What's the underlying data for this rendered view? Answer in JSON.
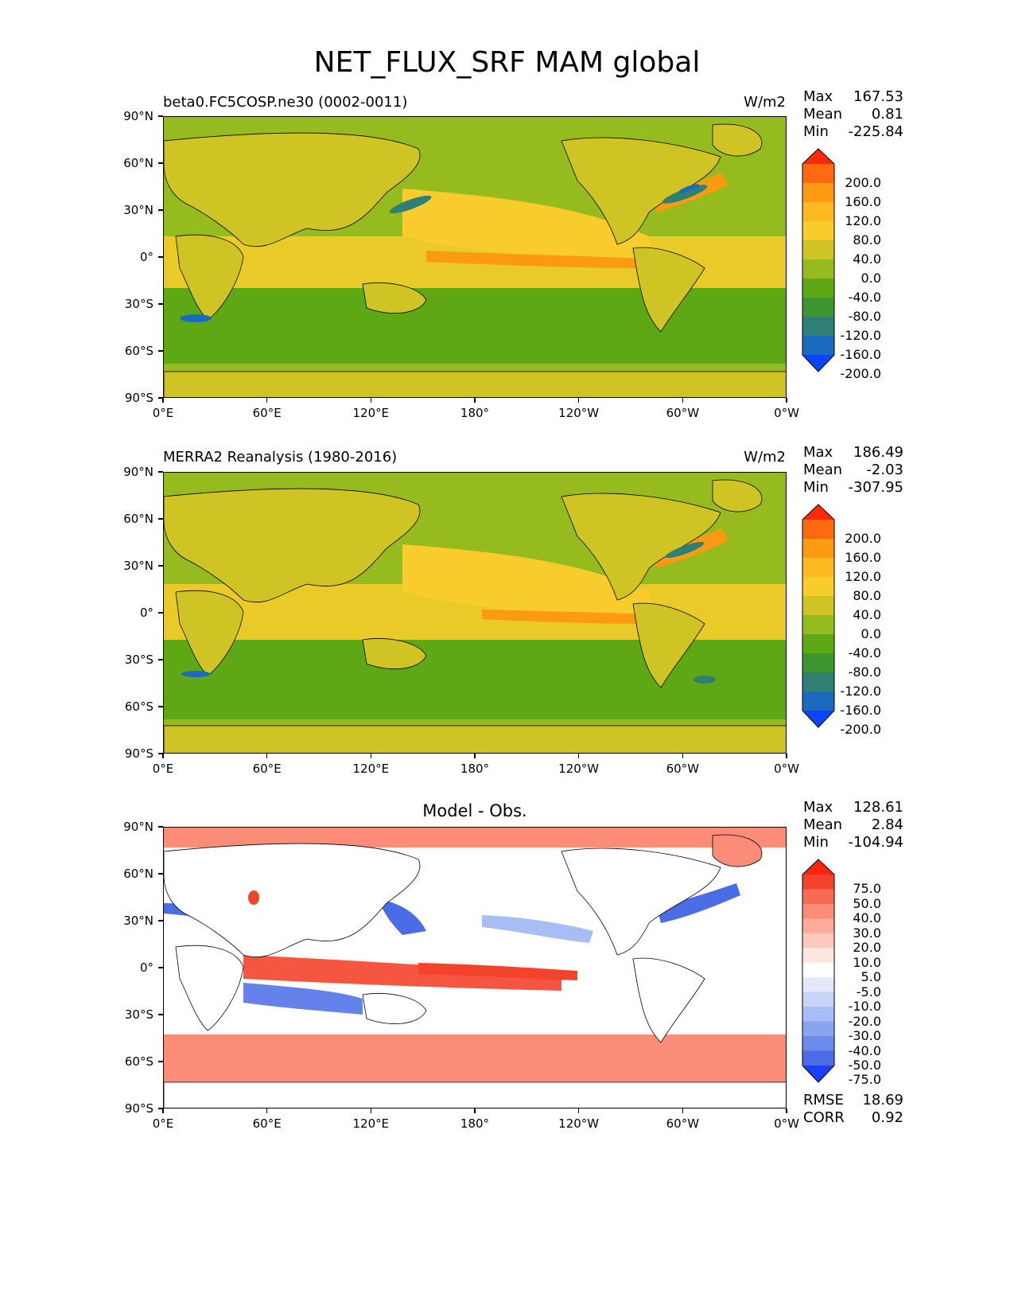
{
  "figure_title": "NET_FLUX_SRF MAM global",
  "panels": [
    {
      "title": "beta0.FC5COSP.ne30 (0002-0011)",
      "units": "W/m2",
      "stats": {
        "max_label": "Max",
        "max": "167.53",
        "mean_label": "Mean",
        "mean": "0.81",
        "min_label": "Min",
        "min": "-225.84"
      }
    },
    {
      "title": "MERRA2 Reanalysis (1980-2016)",
      "units": "W/m2",
      "stats": {
        "max_label": "Max",
        "max": "186.49",
        "mean_label": "Mean",
        "mean": "-2.03",
        "min_label": "Min",
        "min": "-307.95"
      }
    },
    {
      "title": "Model - Obs.",
      "units": "",
      "stats": {
        "max_label": "Max",
        "max": "128.61",
        "mean_label": "Mean",
        "mean": "2.84",
        "min_label": "Min",
        "min": "-104.94"
      },
      "rmse_label": "RMSE",
      "rmse": "18.69",
      "corr_label": "CORR",
      "corr": "0.92"
    }
  ],
  "axes": {
    "lat_ticks": [
      "90°N",
      "60°N",
      "30°N",
      "0°",
      "30°S",
      "60°S",
      "90°S"
    ],
    "lon_ticks": [
      "0°E",
      "60°E",
      "120°E",
      "180°",
      "120°W",
      "60°W",
      "0°W"
    ]
  },
  "colorbar_abs": {
    "labels": [
      "200.0",
      "160.0",
      "120.0",
      "80.0",
      "40.0",
      "0.0",
      "-40.0",
      "-80.0",
      "-120.0",
      "-160.0",
      "-200.0"
    ],
    "colors": [
      "#ff2a0a",
      "#ff6a10",
      "#fc9a12",
      "#fdb822",
      "#f8cc2c",
      "#cfc423",
      "#96bb1e",
      "#5ea815",
      "#3e9430",
      "#2d8073",
      "#1a6bbf",
      "#0a45ff"
    ]
  },
  "colorbar_diff": {
    "labels": [
      "75.0",
      "50.0",
      "40.0",
      "30.0",
      "20.0",
      "10.0",
      "5.0",
      "-5.0",
      "-10.0",
      "-20.0",
      "-30.0",
      "-40.0",
      "-50.0",
      "-75.0"
    ],
    "colors": [
      "#ff2410",
      "#f4432c",
      "#f86a54",
      "#fb8d78",
      "#fcab9b",
      "#fdc9bf",
      "#fee6e1",
      "#ffffff",
      "#e3e9fb",
      "#c6d4f8",
      "#a8bdf3",
      "#8aa5ef",
      "#6c8bea",
      "#4a6ce6",
      "#1a3fff"
    ]
  },
  "map_colors": {
    "land_abs": "#cfc423",
    "ocean_abs": "#96bb1e",
    "warm_abs": "#f8cc2c",
    "hot_abs": "#fc9a12",
    "cool_abs": "#5ea815",
    "cold_abs": "#2d8073",
    "coldest_abs": "#1a6bbf",
    "land_diff": "#ffffff",
    "warm_diff": "#fb8d78",
    "hot_diff": "#f4432c",
    "cool_diff": "#a8bdf3",
    "cold_diff": "#4a6ce6"
  }
}
